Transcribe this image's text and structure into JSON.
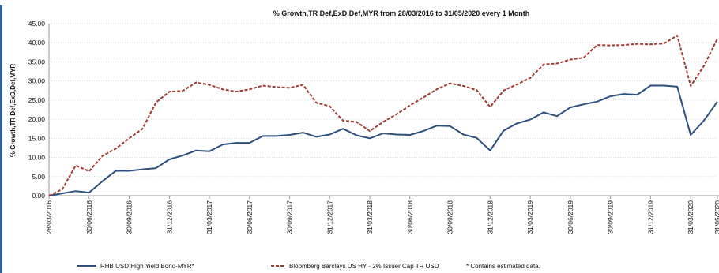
{
  "chart_data": {
    "type": "line",
    "title": "% Growth,TR Def,ExD,Def,MYR from 28/03/2016 to 31/05/2020 every 1 Month",
    "ylabel": "% Growth,TR Def,ExD,Def,MYR",
    "xlabel": "",
    "ylim": [
      0,
      45
    ],
    "yticks": [
      "0.00",
      "5.00",
      "10.00",
      "15.00",
      "20.00",
      "25.00",
      "30.00",
      "35.00",
      "40.00",
      "45.00"
    ],
    "xticks": [
      "28/03/2016",
      "30/06/2016",
      "30/09/2016",
      "31/12/2016",
      "31/03/2017",
      "30/06/2017",
      "30/09/2017",
      "31/12/2017",
      "31/03/2018",
      "30/06/2018",
      "30/09/2018",
      "31/12/2018",
      "31/03/2019",
      "30/06/2019",
      "30/09/2019",
      "31/12/2019",
      "31/03/2020",
      "31/05/2020"
    ],
    "grid": true,
    "legend_position": "bottom",
    "series": [
      {
        "name": "RHB USD High Yield Bond-MYR*",
        "color": "#2d4f7c",
        "style": "solid",
        "values": [
          0.0,
          0.6,
          1.2,
          0.8,
          3.8,
          6.5,
          6.5,
          6.9,
          7.2,
          9.5,
          10.5,
          11.8,
          11.6,
          13.4,
          13.8,
          13.8,
          15.6,
          15.6,
          15.9,
          16.5,
          15.4,
          16.0,
          17.5,
          15.8,
          15.0,
          16.3,
          16.0,
          15.9,
          16.9,
          18.3,
          18.2,
          16.0,
          15.1,
          11.8,
          17.0,
          18.9,
          19.9,
          21.8,
          20.8,
          23.1,
          23.9,
          24.6,
          26.0,
          26.6,
          26.4,
          28.8,
          28.8,
          28.5,
          15.9,
          19.7,
          24.6
        ]
      },
      {
        "name": "Bloomberg Barclays US HY - 2% Issuer Cap TR USD",
        "color": "#9c3a34",
        "style": "dashed",
        "values": [
          0.0,
          1.7,
          7.9,
          6.4,
          10.4,
          12.3,
          15.0,
          17.5,
          24.4,
          27.2,
          27.4,
          29.6,
          29.0,
          27.8,
          27.2,
          27.8,
          28.8,
          28.4,
          28.2,
          29.0,
          24.3,
          23.4,
          19.6,
          19.3,
          16.9,
          19.3,
          21.3,
          23.6,
          25.7,
          27.8,
          29.4,
          28.7,
          27.6,
          23.2,
          27.5,
          29.1,
          30.8,
          34.3,
          34.6,
          35.6,
          36.1,
          39.4,
          39.3,
          39.4,
          39.7,
          39.6,
          39.8,
          41.9,
          28.7,
          34.0,
          41.1
        ]
      }
    ],
    "note": "*  Contains estimated data."
  }
}
